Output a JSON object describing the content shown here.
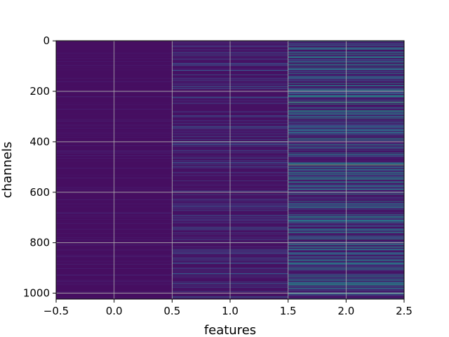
{
  "chart_data": {
    "type": "heatmap",
    "title": "",
    "xlabel": "features",
    "ylabel": "channels",
    "xlim": [
      -0.5,
      2.5
    ],
    "ylim": [
      1023.5,
      -0.5
    ],
    "y_inverted": true,
    "grid": true,
    "colormap": "viridis",
    "x_ticks": [
      -0.5,
      0.0,
      0.5,
      1.0,
      1.5,
      2.0,
      2.5
    ],
    "x_tick_labels": [
      "−0.5",
      "0.0",
      "0.5",
      "1.0",
      "1.5",
      "2.0",
      "2.5"
    ],
    "y_ticks": [
      0,
      200,
      400,
      600,
      800,
      1000
    ],
    "y_tick_labels": [
      "0",
      "200",
      "400",
      "600",
      "800",
      "1000"
    ],
    "n_channels": 1024,
    "n_features": 3,
    "columns": [
      {
        "feature": 0,
        "base_level": 0.05,
        "stripe_density": 0.1,
        "stripe_max": 0.14
      },
      {
        "feature": 1,
        "base_level": 0.06,
        "stripe_density": 0.22,
        "stripe_max": 0.3
      },
      {
        "feature": 2,
        "base_level": 0.07,
        "stripe_density": 0.35,
        "stripe_max": 0.55
      }
    ],
    "highlights": [
      {
        "feature": 2,
        "channel": 492,
        "value": 1.0
      },
      {
        "feature": 2,
        "channel": 242,
        "value": 0.72
      },
      {
        "feature": 2,
        "channel": 250,
        "value": 0.6
      },
      {
        "feature": 2,
        "channel": 308,
        "value": 0.55
      },
      {
        "feature": 2,
        "channel": 968,
        "value": 0.6
      },
      {
        "feature": 2,
        "channel": 696,
        "value": 0.5
      },
      {
        "feature": 2,
        "channel": 826,
        "value": 0.45
      }
    ]
  }
}
